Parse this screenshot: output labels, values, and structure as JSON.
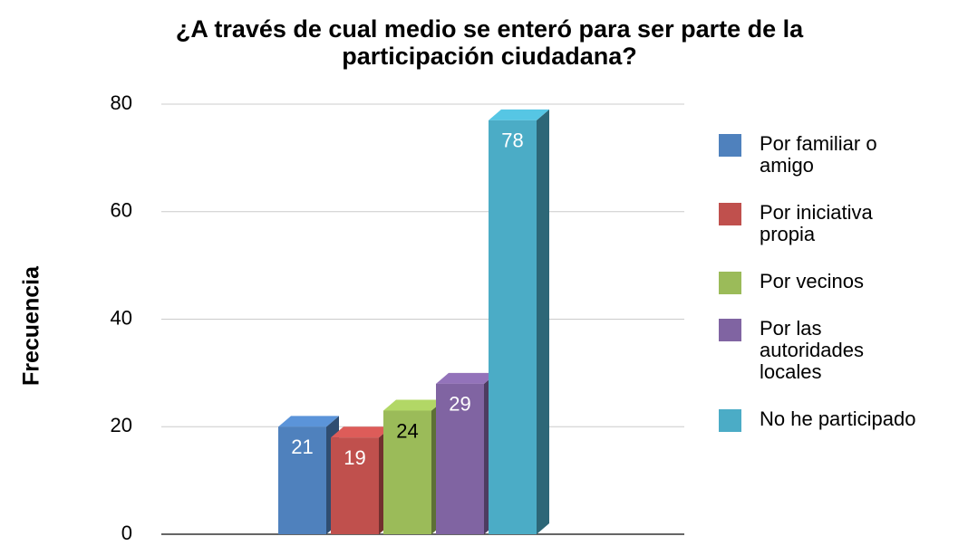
{
  "chart_data": {
    "type": "bar3d",
    "title": [
      "¿A través de cual medio se enteró para ser parte de la",
      "participación ciudadana?"
    ],
    "y_label": "Frecuencia",
    "series": [
      {
        "name": "Por familiar o amigo",
        "color": "#4f81bd",
        "values": [
          21
        ]
      },
      {
        "name": "Por iniciativa propia",
        "color": "#c0504d",
        "values": [
          19
        ]
      },
      {
        "name": "Por vecinos",
        "color": "#9bbb59",
        "values": [
          24
        ]
      },
      {
        "name": "Por las autoridades locales",
        "color": "#8064a2",
        "values": [
          29
        ]
      },
      {
        "name": "No he participado",
        "color": "#4bacc6",
        "values": [
          78
        ]
      }
    ],
    "ylim": [
      0,
      80
    ],
    "yticks": [
      0,
      20,
      40,
      60,
      80
    ],
    "grid": true,
    "legend": "right"
  }
}
